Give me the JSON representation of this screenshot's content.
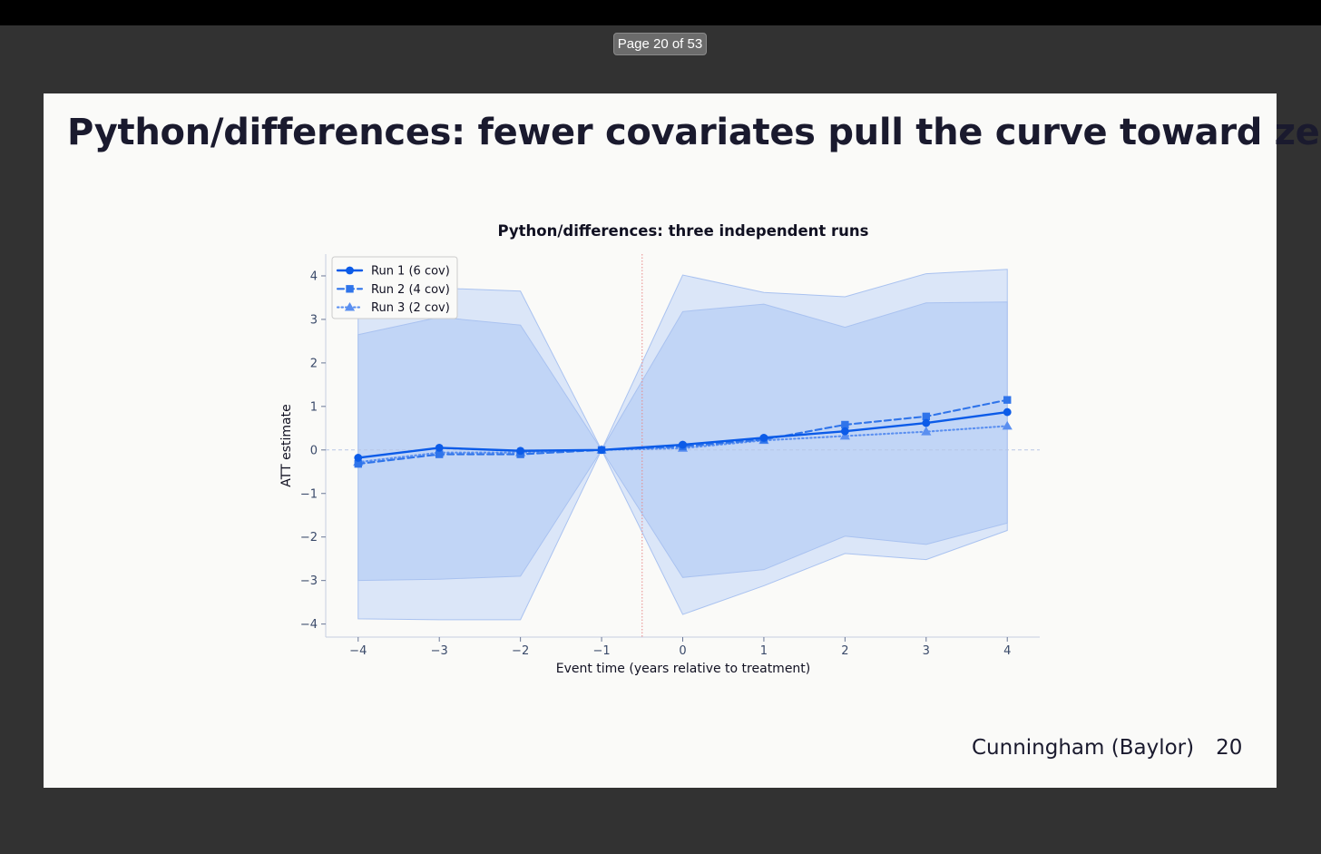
{
  "viewer": {
    "page_indicator": "Page 20 of 53"
  },
  "slide": {
    "title": "Python/differences: fewer covariates pull the curve toward zero",
    "footer_author": "Cunningham (Baylor)",
    "footer_page": "20"
  },
  "chart_data": {
    "type": "line",
    "title": "Python/differences: three independent runs",
    "xlabel": "Event time (years relative to treatment)",
    "ylabel": "ATT estimate",
    "xlim": [
      -4.4,
      4.4
    ],
    "ylim": [
      -4.3,
      4.5
    ],
    "x_ticks": [
      -4,
      -3,
      -2,
      -1,
      0,
      1,
      2,
      3,
      4
    ],
    "x_tick_labels": [
      "−4",
      "−3",
      "−2",
      "−1",
      "0",
      "1",
      "2",
      "3",
      "4"
    ],
    "y_ticks": [
      -4,
      -3,
      -2,
      -1,
      0,
      1,
      2,
      3,
      4
    ],
    "y_tick_labels": [
      "−4",
      "−3",
      "−2",
      "−1",
      "0",
      "1",
      "2",
      "3",
      "4"
    ],
    "zero_line": 0,
    "treatment_line_x": -0.5,
    "legend_position": "top-left",
    "x": [
      -4,
      -3,
      -2,
      -1,
      0,
      1,
      2,
      3,
      4
    ],
    "series": [
      {
        "name": "Run 1 (6 cov)",
        "values": [
          -0.18,
          0.05,
          -0.02,
          0.0,
          0.12,
          0.28,
          0.43,
          0.62,
          0.87
        ],
        "style": "solid",
        "marker": "circle",
        "color": "#0b5be8"
      },
      {
        "name": "Run 2 (4 cov)",
        "values": [
          -0.32,
          -0.1,
          -0.1,
          0.0,
          0.08,
          0.24,
          0.58,
          0.77,
          1.15
        ],
        "style": "dashed",
        "marker": "square",
        "color": "#2f74ea"
      },
      {
        "name": "Run 3 (2 cov)",
        "values": [
          -0.28,
          -0.06,
          -0.06,
          0.0,
          0.04,
          0.22,
          0.32,
          0.42,
          0.55
        ],
        "style": "dotted",
        "marker": "triangle",
        "color": "#5a8ff0"
      }
    ],
    "bands": [
      {
        "name": "wide-confidence-band",
        "upper": [
          3.3,
          3.72,
          3.65,
          0.0,
          4.02,
          3.62,
          3.52,
          4.05,
          4.15
        ],
        "lower": [
          -3.88,
          -3.9,
          -3.9,
          0.0,
          -3.78,
          -3.12,
          -2.38,
          -2.52,
          -1.85
        ],
        "color": "#d5e2f8"
      },
      {
        "name": "narrow-confidence-band",
        "upper": [
          2.65,
          3.05,
          2.87,
          0.0,
          3.18,
          3.35,
          2.82,
          3.38,
          3.4
        ],
        "lower": [
          -3.0,
          -2.97,
          -2.9,
          0.0,
          -2.93,
          -2.75,
          -1.98,
          -2.17,
          -1.68
        ],
        "color": "#bcd1f6"
      }
    ]
  }
}
